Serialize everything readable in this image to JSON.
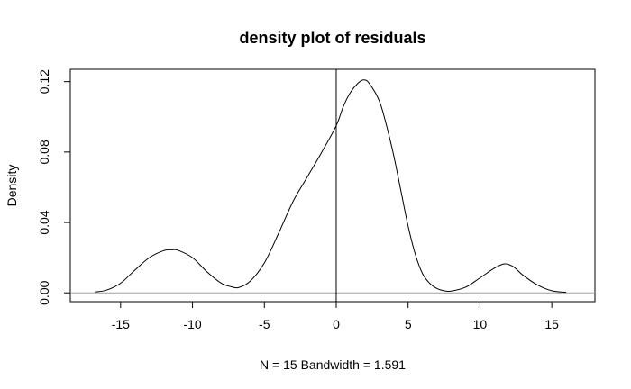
{
  "chart_data": {
    "type": "line",
    "title": "density plot of residuals",
    "xlabel": "N = 15   Bandwidth = 1.591",
    "ylabel": "Density",
    "xlim": [
      -18.5,
      18
    ],
    "ylim": [
      -0.005,
      0.127
    ],
    "x_ticks": [
      -15,
      -10,
      -5,
      0,
      5,
      10,
      15
    ],
    "y_ticks": [
      0.0,
      0.04,
      0.08,
      0.12
    ],
    "y_tick_labels": [
      "0.00",
      "0.04",
      "0.08",
      "0.12"
    ],
    "reference_lines": {
      "vertical_x": 0,
      "horizontal_y": 0
    },
    "grid": false,
    "series": [
      {
        "x": [
          -16.8,
          -16.0,
          -15.0,
          -14.0,
          -13.0,
          -12.0,
          -11.4,
          -11.0,
          -10.0,
          -9.0,
          -8.0,
          -7.3,
          -6.8,
          -6.0,
          -5.0,
          -4.0,
          -3.0,
          -2.0,
          -1.0,
          0.0,
          0.5,
          1.0,
          1.5,
          1.9,
          2.3,
          3.0,
          3.5,
          4.0,
          4.5,
          5.0,
          5.5,
          6.0,
          6.5,
          7.0,
          7.5,
          8.0,
          9.0,
          10.0,
          11.0,
          11.7,
          12.3,
          13.0,
          14.0,
          15.0,
          16.0
        ],
        "y": [
          0.0005,
          0.0015,
          0.0055,
          0.013,
          0.02,
          0.024,
          0.0245,
          0.0242,
          0.02,
          0.012,
          0.0055,
          0.0035,
          0.003,
          0.0065,
          0.017,
          0.034,
          0.052,
          0.066,
          0.08,
          0.095,
          0.106,
          0.114,
          0.119,
          0.121,
          0.119,
          0.109,
          0.095,
          0.078,
          0.058,
          0.038,
          0.022,
          0.011,
          0.0055,
          0.0025,
          0.0012,
          0.001,
          0.0032,
          0.0085,
          0.014,
          0.0165,
          0.015,
          0.01,
          0.0045,
          0.0012,
          0.0003
        ]
      }
    ]
  }
}
